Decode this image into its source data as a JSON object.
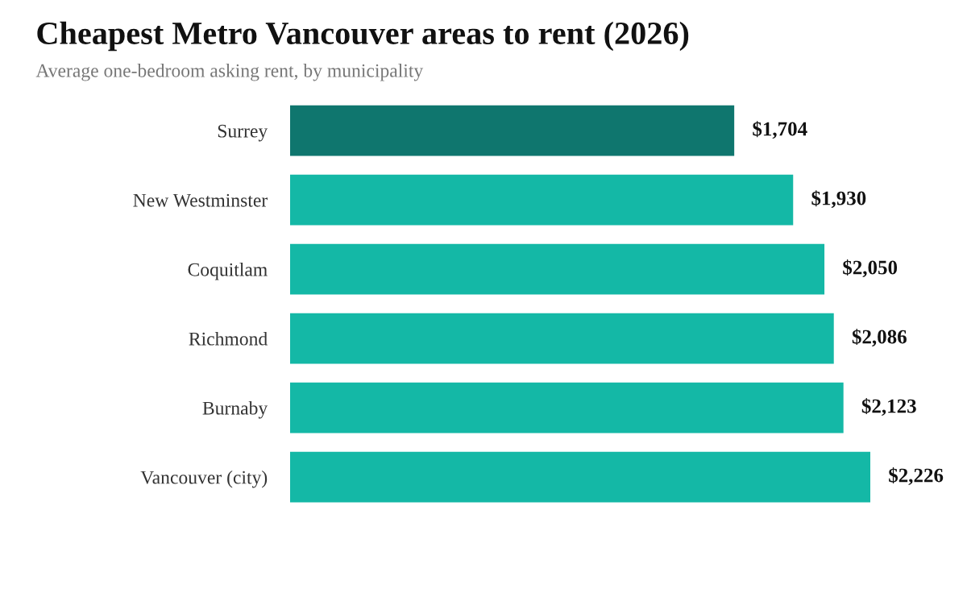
{
  "chart_data": {
    "type": "bar",
    "orientation": "horizontal",
    "title": "Cheapest Metro Vancouver areas to rent (2026)",
    "subtitle": "Average one-bedroom asking rent, by municipality",
    "categories": [
      "Surrey",
      "New Westminster",
      "Coquitlam",
      "Richmond",
      "Burnaby",
      "Vancouver (city)"
    ],
    "values": [
      1704,
      1930,
      2050,
      2086,
      2123,
      2226
    ],
    "value_labels": [
      "$1,704",
      "$1,930",
      "$2,050",
      "$2,086",
      "$2,123",
      "$2,226"
    ],
    "colors": [
      "#0f766e",
      "#14b8a6",
      "#14b8a6",
      "#14b8a6",
      "#14b8a6",
      "#14b8a6"
    ],
    "grid": false,
    "legend": false
  }
}
